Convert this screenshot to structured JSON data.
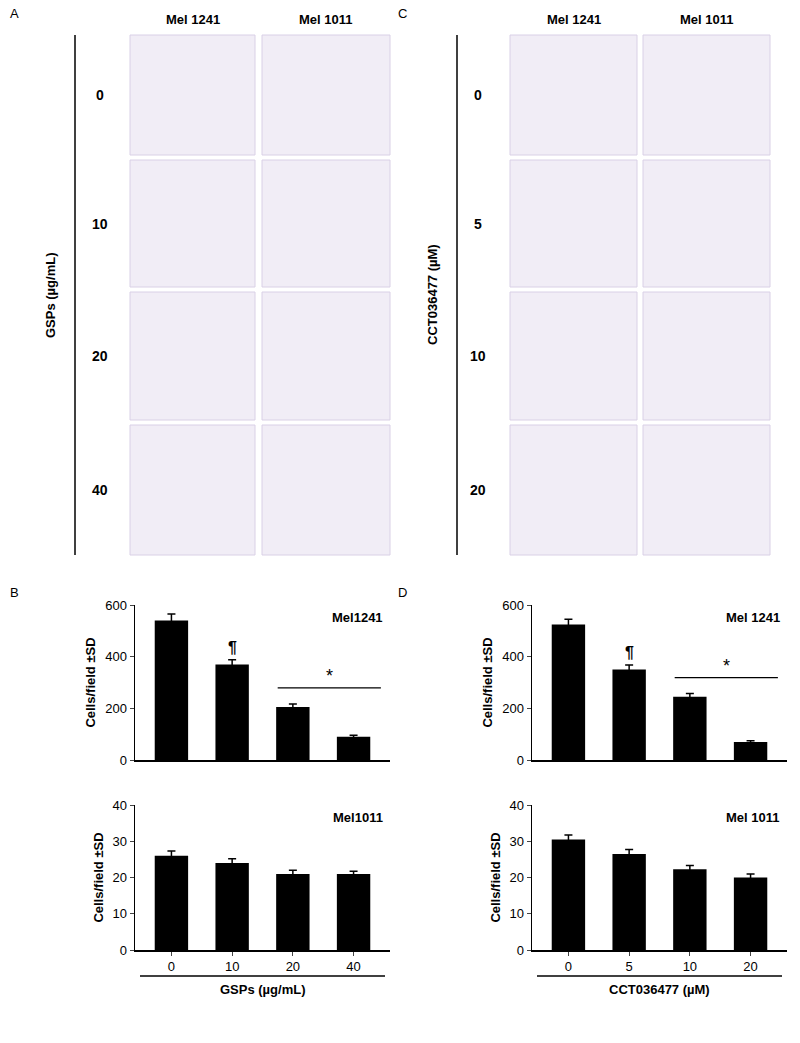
{
  "panels": [
    {
      "label": "A",
      "columns": [
        "Mel 1241",
        "Mel 1011"
      ],
      "rows": [
        "0",
        "10",
        "20",
        "40"
      ],
      "axis_label": "GSPs (µg/mL)"
    },
    {
      "label": "C",
      "columns": [
        "Mel 1241",
        "Mel 1011"
      ],
      "rows": [
        "0",
        "5",
        "10",
        "20"
      ],
      "axis_label": "CCT036477 (µM)"
    }
  ],
  "chart_data": [
    {
      "panel_label": "B",
      "type": "bar",
      "title": "Mel1241",
      "categories": [
        "0",
        "10",
        "20",
        "40"
      ],
      "values": [
        540,
        370,
        205,
        90
      ],
      "error": [
        25,
        18,
        12,
        6
      ],
      "color": "#000000",
      "ylim": [
        0,
        600
      ],
      "yticks": [
        0,
        200,
        400,
        600
      ],
      "y_label": "Cells/field ±SD",
      "tick_labels": "y",
      "annotations": [
        {
          "text": "¶",
          "categories": [
            "10"
          ]
        },
        {
          "text": "*",
          "categories": [
            "20",
            "40"
          ]
        }
      ]
    },
    {
      "type": "bar",
      "title": "Mel1011",
      "categories": [
        "0",
        "10",
        "20",
        "40"
      ],
      "values": [
        26,
        24,
        21,
        21
      ],
      "error": [
        1.3,
        1.2,
        1,
        0.7
      ],
      "color": "#000000",
      "ylim": [
        0,
        40
      ],
      "yticks": [
        0,
        10,
        20,
        30,
        40
      ],
      "y_label": "Cells/field ±SD",
      "x_label": "GSPs (µg/mL)"
    },
    {
      "panel_label": "D",
      "type": "bar",
      "title": "Mel 1241",
      "categories": [
        "0",
        "5",
        "10",
        "20"
      ],
      "values": [
        525,
        350,
        245,
        70
      ],
      "error": [
        20,
        18,
        12,
        5
      ],
      "color": "#000000",
      "ylim": [
        0,
        600
      ],
      "yticks": [
        0,
        200,
        400,
        600
      ],
      "y_label": "Cells/field ±SD",
      "tick_labels": "y",
      "annotations": [
        {
          "text": "¶",
          "categories": [
            "5"
          ]
        },
        {
          "text": "*",
          "categories": [
            "10",
            "20"
          ]
        }
      ]
    },
    {
      "type": "bar",
      "title": "Mel 1011",
      "categories": [
        "0",
        "5",
        "10",
        "20"
      ],
      "values": [
        30.5,
        26.5,
        22.3,
        20
      ],
      "error": [
        1.2,
        1.2,
        1,
        1
      ],
      "color": "#000000",
      "ylim": [
        0,
        40
      ],
      "yticks": [
        0,
        10,
        20,
        30,
        40
      ],
      "y_label": "Cells/field ±SD",
      "x_label": "CCT036477 (µM)"
    }
  ]
}
